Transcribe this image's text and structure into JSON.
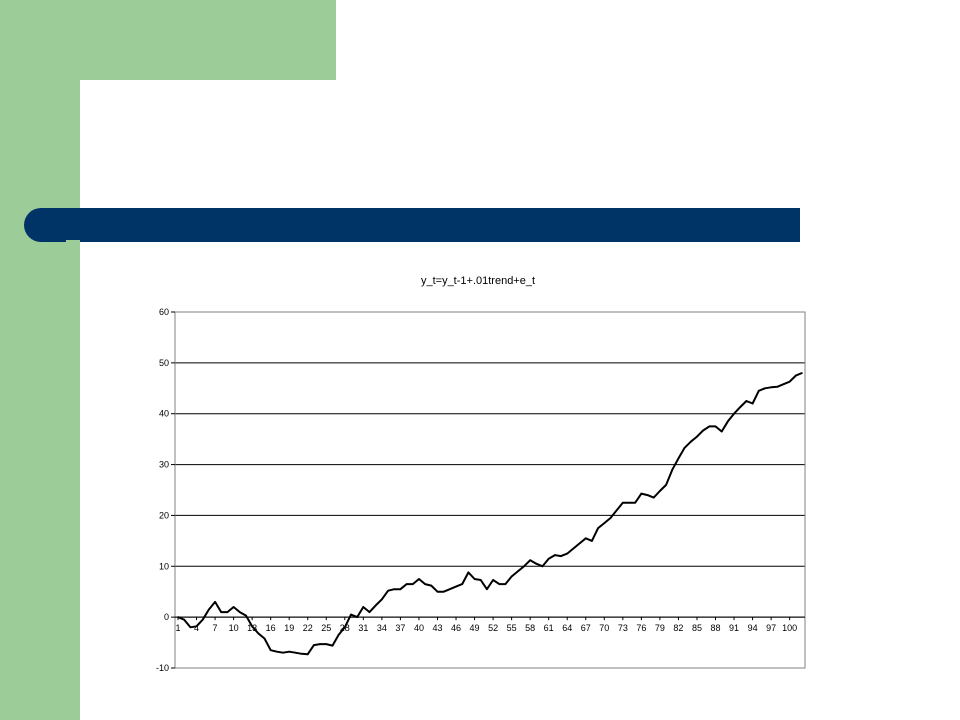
{
  "colors": {
    "accent_green": "#9ccc98",
    "title_bar_blue": "#003366",
    "line": "#000000",
    "grid": "#000000"
  },
  "chart_data": {
    "type": "line",
    "title": "y_t=y_t-1+.01trend+e_t",
    "xlabel": "",
    "ylabel": "",
    "ylim": [
      -10,
      60
    ],
    "yticks": [
      -10,
      0,
      10,
      20,
      30,
      40,
      50,
      60
    ],
    "x_tick_labels": [
      "1",
      "4",
      "7",
      "10",
      "13",
      "16",
      "19",
      "22",
      "25",
      "28",
      "31",
      "34",
      "37",
      "40",
      "43",
      "46",
      "49",
      "52",
      "55",
      "58",
      "61",
      "64",
      "67",
      "70",
      "73",
      "76",
      "79",
      "82",
      "85",
      "88",
      "91",
      "94",
      "97",
      "100"
    ],
    "grid": "horizontal",
    "legend": "none",
    "x": [
      1,
      2,
      3,
      4,
      5,
      6,
      7,
      8,
      9,
      10,
      11,
      12,
      13,
      14,
      15,
      16,
      17,
      18,
      19,
      20,
      21,
      22,
      23,
      24,
      25,
      26,
      27,
      28,
      29,
      30,
      31,
      32,
      33,
      34,
      35,
      36,
      37,
      38,
      39,
      40,
      41,
      42,
      43,
      44,
      45,
      46,
      47,
      48,
      49,
      50,
      51,
      52,
      53,
      54,
      55,
      56,
      57,
      58,
      59,
      60,
      61,
      62,
      63,
      64,
      65,
      66,
      67,
      68,
      69,
      70,
      71,
      72,
      73,
      74,
      75,
      76,
      77,
      78,
      79,
      80,
      81,
      82,
      83,
      84,
      85,
      86,
      87,
      88,
      89,
      90,
      91,
      92,
      93,
      94,
      95,
      96,
      97,
      98,
      99,
      100,
      101,
      102
    ],
    "values": [
      0,
      -0.5,
      -2,
      -1.8,
      -0.5,
      1.5,
      3,
      1,
      1,
      2,
      1,
      0.3,
      -1.8,
      -3.2,
      -4.2,
      -6.5,
      -6.8,
      -7,
      -6.8,
      -7,
      -7.2,
      -7.3,
      -5.5,
      -5.3,
      -5.3,
      -5.6,
      -3.5,
      -2,
      0.5,
      0,
      2,
      1,
      2.3,
      3.5,
      5.2,
      5.5,
      5.5,
      6.5,
      6.5,
      7.5,
      6.5,
      6.2,
      5,
      5,
      5.5,
      6,
      6.5,
      8.8,
      7.5,
      7.3,
      5.5,
      7.3,
      6.5,
      6.5,
      8,
      9,
      10,
      11.2,
      10.5,
      10,
      11.5,
      12.2,
      12,
      12.5,
      13.5,
      14.5,
      15.5,
      15,
      17.5,
      18.5,
      19.5,
      21,
      22.5,
      22.5,
      22.5,
      24.3,
      24,
      23.5,
      24.8,
      26,
      29,
      31.2,
      33.3,
      34.5,
      35.5,
      36.7,
      37.5,
      37.5,
      36.5,
      38.5,
      40,
      41.3,
      42.5,
      42,
      44.5,
      45,
      45.2,
      45.3,
      45.8,
      46.3,
      47.5,
      48
    ]
  }
}
